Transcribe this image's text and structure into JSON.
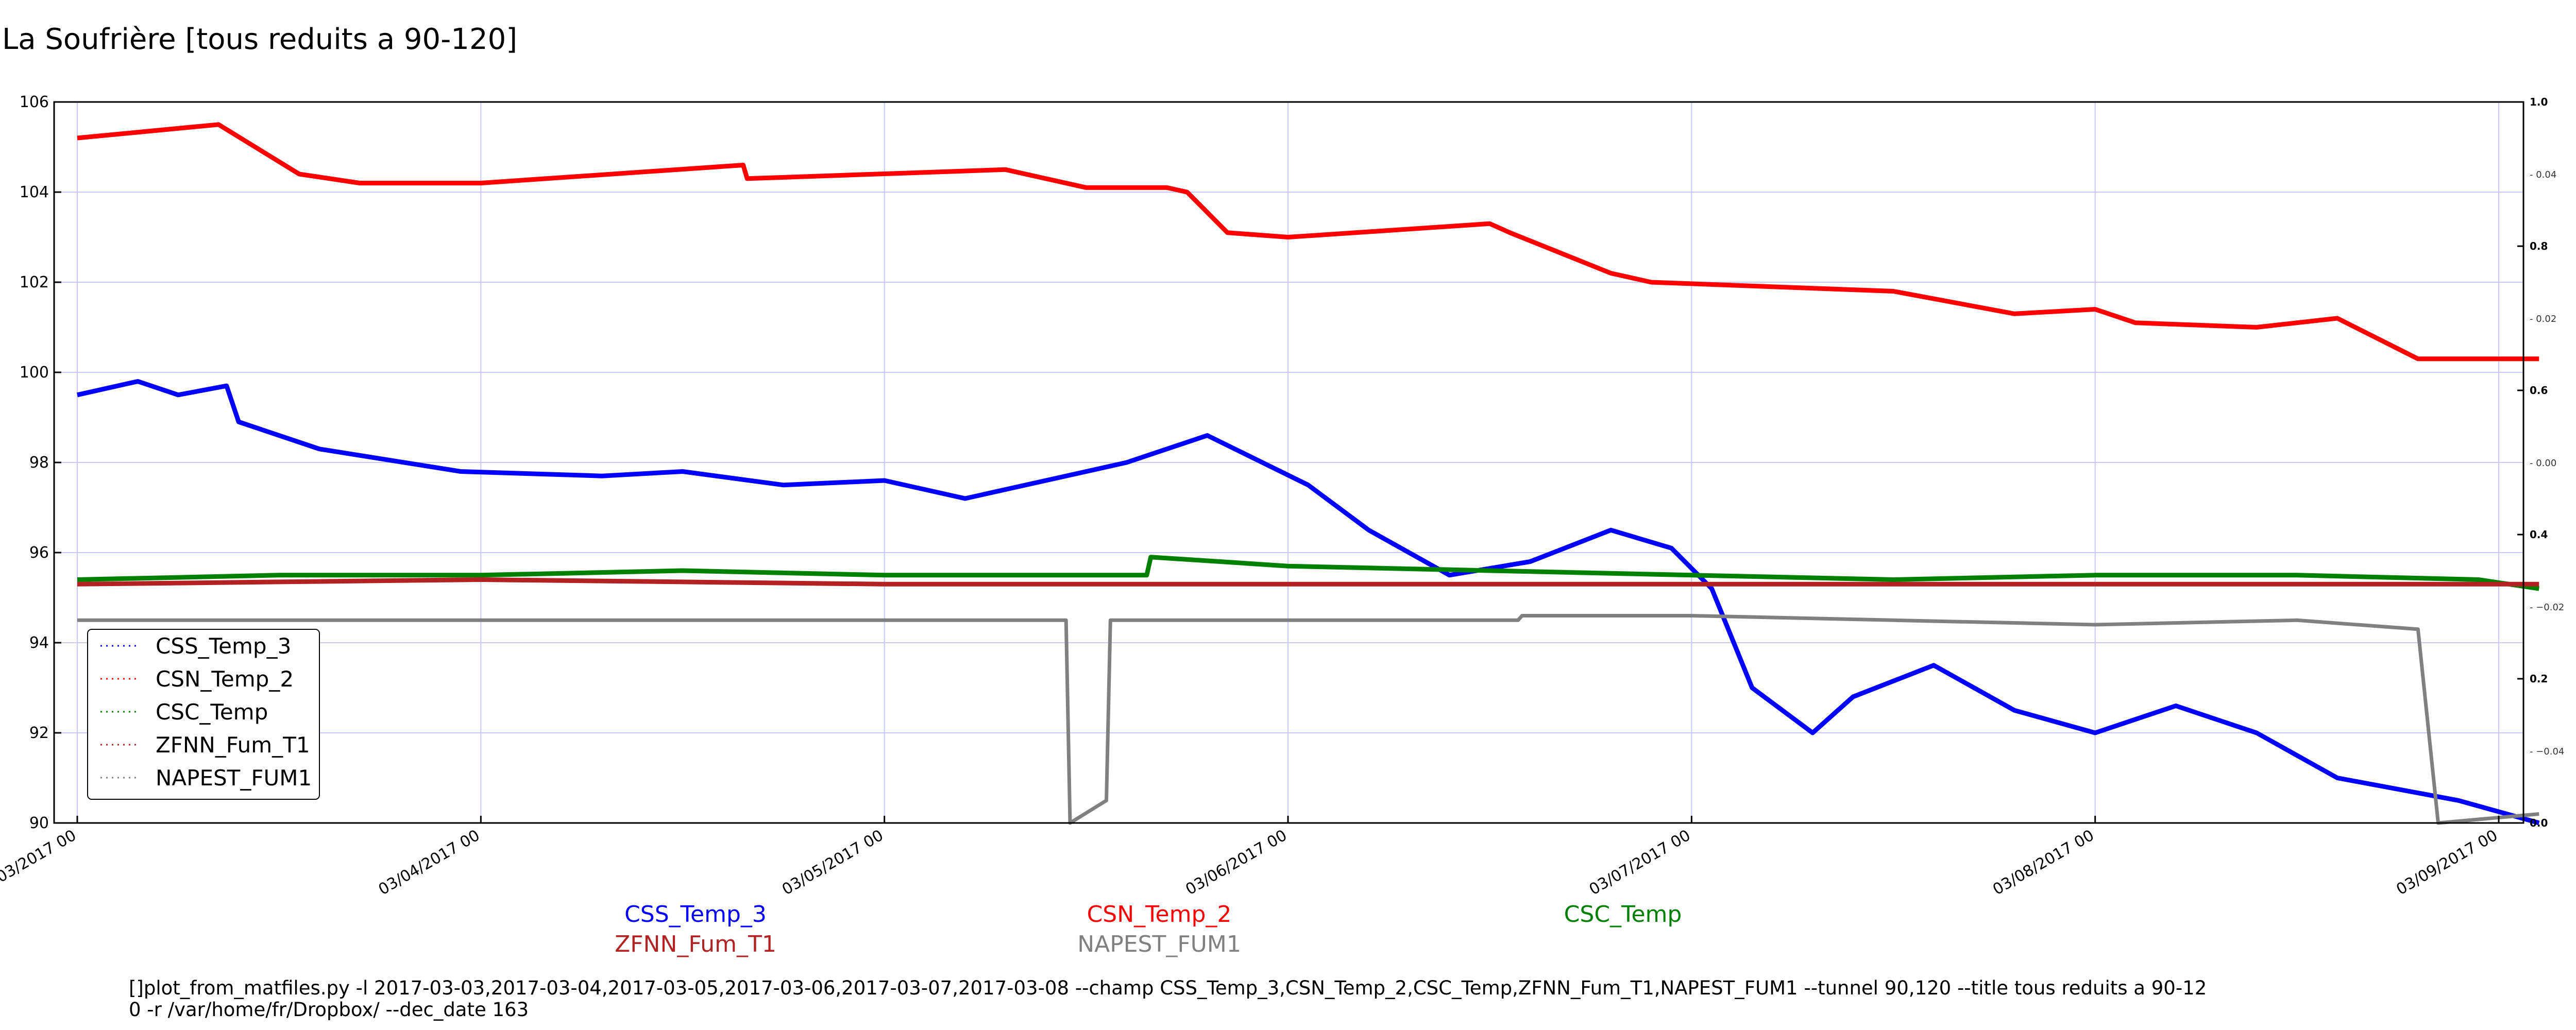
{
  "title": "La Soufrière [tous reduits a 90-120]",
  "command_line": [
    "[]plot_from_matfiles.py -l 2017-03-03,2017-03-04,2017-03-05,2017-03-06,2017-03-07,2017-03-08 --champ CSS_Temp_3,CSN_Temp_2,CSC_Temp,ZFNN_Fum_T1,NAPEST_FUM1 --tunnel 90,120 --title tous reduits a 90-12",
    "0 -r /var/home/fr/Dropbox/ --dec_date 163"
  ],
  "chart_data": {
    "type": "line",
    "title": "La Soufrière [tous reduits a 90-120]",
    "xlabel": "",
    "ylabel": "",
    "x_ticks": [
      "03/03/2017 00",
      "03/04/2017 00",
      "03/05/2017 00",
      "03/06/2017 00",
      "03/07/2017 00",
      "03/08/2017 00",
      "03/09/2017 00"
    ],
    "xlim": [
      0,
      6.1
    ],
    "ylim": [
      90,
      106
    ],
    "y_ticks": [
      90,
      92,
      94,
      96,
      98,
      100,
      102,
      104,
      106
    ],
    "right_axis": {
      "outer_ticks": [
        "0.0",
        "0.2",
        "0.4",
        "0.6",
        "0.8",
        "1.0"
      ],
      "inner_ticks": [
        "−0.04",
        "−0.02",
        "0.00",
        "0.02",
        "0.04"
      ]
    },
    "grid": true,
    "legend_position": "lower-left",
    "series": [
      {
        "name": "CSS_Temp_3",
        "color": "#0000ff",
        "x": [
          0.0,
          0.15,
          0.25,
          0.37,
          0.4,
          0.6,
          0.95,
          1.3,
          1.5,
          1.75,
          2.0,
          2.2,
          2.4,
          2.6,
          2.8,
          3.05,
          3.2,
          3.4,
          3.6,
          3.8,
          3.95,
          4.05,
          4.15,
          4.3,
          4.4,
          4.6,
          4.8,
          5.0,
          5.2,
          5.4,
          5.6,
          5.9,
          6.1
        ],
        "y": [
          99.5,
          99.8,
          99.5,
          99.7,
          98.9,
          98.3,
          97.8,
          97.7,
          97.8,
          97.5,
          97.6,
          97.2,
          97.6,
          98.0,
          98.6,
          97.5,
          96.5,
          95.5,
          95.8,
          96.5,
          96.1,
          95.2,
          93.0,
          92.0,
          92.8,
          93.5,
          92.5,
          92.0,
          92.6,
          92.0,
          91.0,
          90.5,
          90.0
        ]
      },
      {
        "name": "CSN_Temp_2",
        "color": "#ff0000",
        "x": [
          0.0,
          0.35,
          0.55,
          0.7,
          1.0,
          1.65,
          1.66,
          2.3,
          2.5,
          2.7,
          2.75,
          2.85,
          3.0,
          3.5,
          3.55,
          3.8,
          3.9,
          4.5,
          4.8,
          5.0,
          5.1,
          5.4,
          5.6,
          5.8,
          6.1
        ],
        "y": [
          105.2,
          105.5,
          104.4,
          104.2,
          104.2,
          104.6,
          104.3,
          104.5,
          104.1,
          104.1,
          104.0,
          103.1,
          103.0,
          103.3,
          103.1,
          102.2,
          102.0,
          101.8,
          101.3,
          101.4,
          101.1,
          101.0,
          101.2,
          100.3,
          100.3
        ]
      },
      {
        "name": "CSC_Temp",
        "color": "#008000",
        "x": [
          0.0,
          0.5,
          1.0,
          1.5,
          2.0,
          2.5,
          2.65,
          2.66,
          3.0,
          3.5,
          4.0,
          4.5,
          5.0,
          5.5,
          5.95,
          6.1
        ],
        "y": [
          95.4,
          95.5,
          95.5,
          95.6,
          95.5,
          95.5,
          95.5,
          95.9,
          95.7,
          95.6,
          95.5,
          95.4,
          95.5,
          95.5,
          95.4,
          95.2
        ]
      },
      {
        "name": "ZFNN_Fum_T1",
        "color": "#b22222",
        "x": [
          0.0,
          1.0,
          2.0,
          3.0,
          4.0,
          5.0,
          6.1
        ],
        "y": [
          95.3,
          95.4,
          95.3,
          95.3,
          95.3,
          95.3,
          95.3
        ]
      },
      {
        "name": "NAPEST_FUM1",
        "color": "#808080",
        "x": [
          0.0,
          1.0,
          2.0,
          2.45,
          2.46,
          2.55,
          2.56,
          3.0,
          3.57,
          3.58,
          4.0,
          4.5,
          5.0,
          5.5,
          5.8,
          5.85,
          6.1
        ],
        "y": [
          94.5,
          94.5,
          94.5,
          94.5,
          90.0,
          90.5,
          94.5,
          94.5,
          94.5,
          94.6,
          94.6,
          94.5,
          94.4,
          94.5,
          94.3,
          90.0,
          90.2
        ]
      }
    ]
  }
}
